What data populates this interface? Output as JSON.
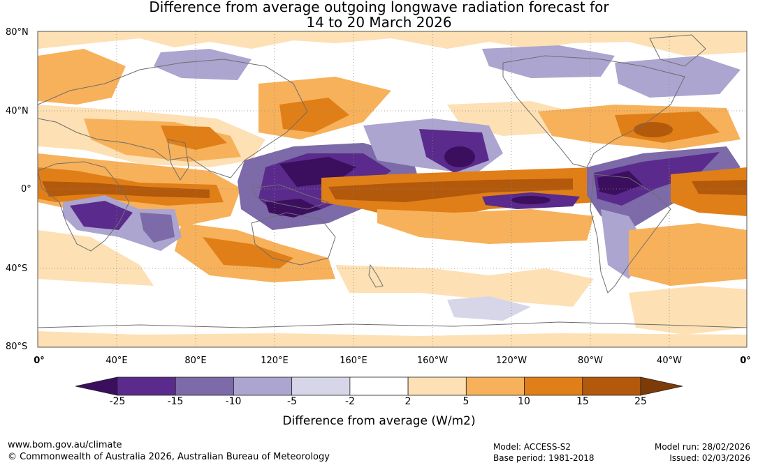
{
  "title": {
    "line1": "Difference from average outgoing longwave radiation forecast for",
    "line2": "14 to 20 March 2026"
  },
  "map": {
    "lat_labels": [
      "80°N",
      "40°N",
      "0°",
      "40°S",
      "80°S"
    ],
    "lon_labels": [
      "0°",
      "40°E",
      "80°E",
      "120°E",
      "160°E",
      "160°W",
      "120°W",
      "80°W",
      "40°W",
      "0°"
    ],
    "ocean_color": "#ffffff",
    "land_outline_color": "#777777"
  },
  "colorbar": {
    "ticks": [
      "-25",
      "-15",
      "-10",
      "-5",
      "-2",
      "2",
      "5",
      "10",
      "15",
      "25"
    ],
    "colors": [
      "#3b0f5e",
      "#5a2b8c",
      "#7d6aa8",
      "#aca5cf",
      "#d7d6e9",
      "#ffffff",
      "#fde0b4",
      "#f7b15a",
      "#e07f17",
      "#b3590c",
      "#7d3b08"
    ],
    "label": "Difference from average (W/m2)"
  },
  "footer": {
    "website": "www.bom.gov.au/climate",
    "copyright": "© Commonwealth of Australia 2026, Australian Bureau of Meteorology",
    "model": "Model: ACCESS-S2",
    "base_period": "Base period: 1981-2018",
    "model_run": "Model run: 28/02/2026",
    "issued": "Issued: 02/03/2026"
  }
}
